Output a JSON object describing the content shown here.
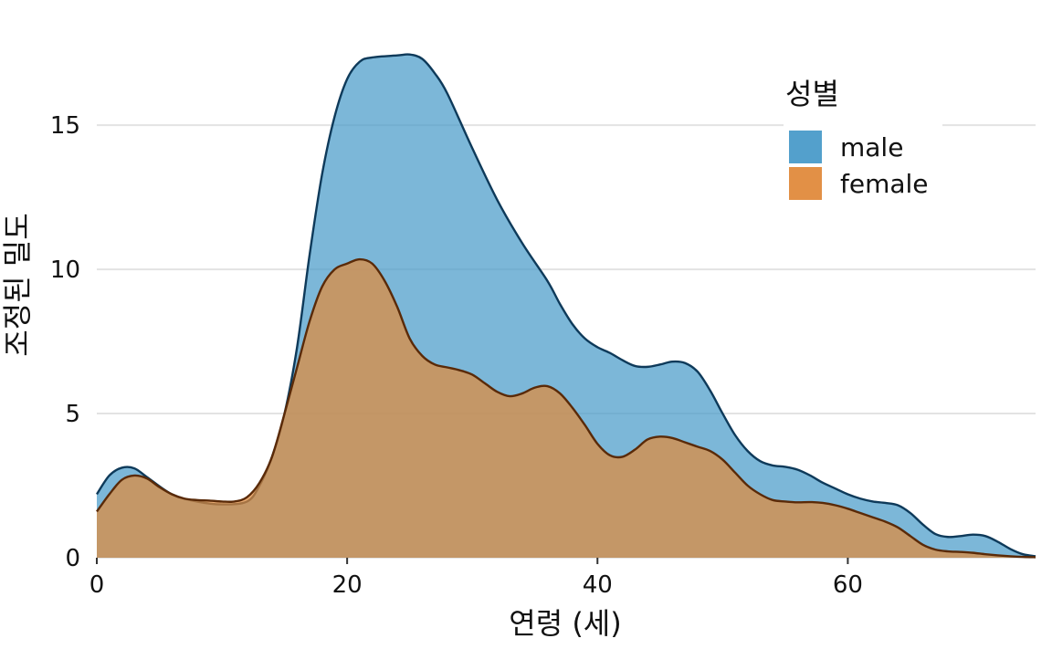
{
  "chart_data": {
    "type": "area",
    "title": "",
    "xlabel": "연령 (세)",
    "ylabel": "조정된 밀도",
    "xlim": [
      0,
      75
    ],
    "ylim": [
      0,
      17.6
    ],
    "x_ticks": [
      0,
      20,
      40,
      60
    ],
    "y_ticks": [
      0,
      5,
      10,
      15
    ],
    "grid": "horizontal major lines",
    "legend": {
      "title": "성별",
      "placement": "top-right"
    },
    "overlap": "overlapping semi-transparent densities, female drawn on top",
    "series": [
      {
        "name": "male",
        "color": "#4a9bc9",
        "line_color": "#0e3a5a",
        "points": [
          [
            0,
            2.2
          ],
          [
            1,
            2.85
          ],
          [
            2,
            3.12
          ],
          [
            3,
            3.1
          ],
          [
            4,
            2.8
          ],
          [
            6,
            2.2
          ],
          [
            8,
            1.95
          ],
          [
            10,
            1.85
          ],
          [
            12,
            1.95
          ],
          [
            13,
            2.5
          ],
          [
            14,
            3.5
          ],
          [
            15,
            5.0
          ],
          [
            16,
            7.3
          ],
          [
            17,
            10.5
          ],
          [
            18,
            13.3
          ],
          [
            19,
            15.3
          ],
          [
            20,
            16.6
          ],
          [
            21,
            17.2
          ],
          [
            22,
            17.35
          ],
          [
            24,
            17.42
          ],
          [
            25,
            17.45
          ],
          [
            26,
            17.3
          ],
          [
            27,
            16.8
          ],
          [
            28,
            16.1
          ],
          [
            30,
            14.2
          ],
          [
            32,
            12.4
          ],
          [
            34,
            10.9
          ],
          [
            36,
            9.6
          ],
          [
            37,
            8.8
          ],
          [
            38,
            8.1
          ],
          [
            39,
            7.6
          ],
          [
            40,
            7.3
          ],
          [
            41,
            7.1
          ],
          [
            42,
            6.85
          ],
          [
            43,
            6.65
          ],
          [
            44,
            6.62
          ],
          [
            45,
            6.7
          ],
          [
            46,
            6.8
          ],
          [
            47,
            6.75
          ],
          [
            48,
            6.45
          ],
          [
            49,
            5.8
          ],
          [
            50,
            5.0
          ],
          [
            51,
            4.25
          ],
          [
            52,
            3.7
          ],
          [
            53,
            3.35
          ],
          [
            54,
            3.2
          ],
          [
            55,
            3.15
          ],
          [
            56,
            3.05
          ],
          [
            57,
            2.85
          ],
          [
            58,
            2.6
          ],
          [
            59,
            2.4
          ],
          [
            60,
            2.2
          ],
          [
            61,
            2.05
          ],
          [
            62,
            1.95
          ],
          [
            63,
            1.9
          ],
          [
            64,
            1.82
          ],
          [
            65,
            1.55
          ],
          [
            66,
            1.15
          ],
          [
            67,
            0.82
          ],
          [
            68,
            0.72
          ],
          [
            69,
            0.75
          ],
          [
            70,
            0.8
          ],
          [
            71,
            0.75
          ],
          [
            72,
            0.55
          ],
          [
            73,
            0.3
          ],
          [
            74,
            0.12
          ],
          [
            75,
            0.05
          ]
        ]
      },
      {
        "name": "female",
        "color": "#e08a3c",
        "line_color": "#5a2a08",
        "points": [
          [
            0,
            1.6
          ],
          [
            1,
            2.2
          ],
          [
            2,
            2.7
          ],
          [
            3,
            2.85
          ],
          [
            4,
            2.75
          ],
          [
            5,
            2.45
          ],
          [
            6,
            2.2
          ],
          [
            7,
            2.05
          ],
          [
            8,
            2.0
          ],
          [
            9,
            1.98
          ],
          [
            10,
            1.95
          ],
          [
            11,
            1.95
          ],
          [
            12,
            2.1
          ],
          [
            13,
            2.6
          ],
          [
            14,
            3.5
          ],
          [
            15,
            5.0
          ],
          [
            16,
            6.6
          ],
          [
            17,
            8.2
          ],
          [
            18,
            9.4
          ],
          [
            19,
            10.0
          ],
          [
            20,
            10.2
          ],
          [
            21,
            10.35
          ],
          [
            22,
            10.2
          ],
          [
            23,
            9.6
          ],
          [
            24,
            8.7
          ],
          [
            25,
            7.6
          ],
          [
            26,
            7.0
          ],
          [
            27,
            6.7
          ],
          [
            28,
            6.6
          ],
          [
            29,
            6.5
          ],
          [
            30,
            6.35
          ],
          [
            31,
            6.05
          ],
          [
            32,
            5.75
          ],
          [
            33,
            5.6
          ],
          [
            34,
            5.7
          ],
          [
            35,
            5.9
          ],
          [
            36,
            5.95
          ],
          [
            37,
            5.7
          ],
          [
            38,
            5.2
          ],
          [
            39,
            4.6
          ],
          [
            40,
            3.95
          ],
          [
            41,
            3.55
          ],
          [
            42,
            3.5
          ],
          [
            43,
            3.75
          ],
          [
            44,
            4.1
          ],
          [
            45,
            4.2
          ],
          [
            46,
            4.15
          ],
          [
            47,
            4.0
          ],
          [
            48,
            3.85
          ],
          [
            49,
            3.7
          ],
          [
            50,
            3.4
          ],
          [
            51,
            2.95
          ],
          [
            52,
            2.5
          ],
          [
            53,
            2.2
          ],
          [
            54,
            2.0
          ],
          [
            55,
            1.95
          ],
          [
            56,
            1.92
          ],
          [
            57,
            1.93
          ],
          [
            58,
            1.9
          ],
          [
            59,
            1.82
          ],
          [
            60,
            1.7
          ],
          [
            61,
            1.55
          ],
          [
            62,
            1.4
          ],
          [
            63,
            1.25
          ],
          [
            64,
            1.05
          ],
          [
            65,
            0.75
          ],
          [
            66,
            0.45
          ],
          [
            67,
            0.28
          ],
          [
            68,
            0.22
          ],
          [
            69,
            0.2
          ],
          [
            70,
            0.17
          ],
          [
            71,
            0.12
          ],
          [
            72,
            0.08
          ],
          [
            73,
            0.05
          ],
          [
            74,
            0.03
          ],
          [
            75,
            0.02
          ]
        ]
      }
    ]
  }
}
